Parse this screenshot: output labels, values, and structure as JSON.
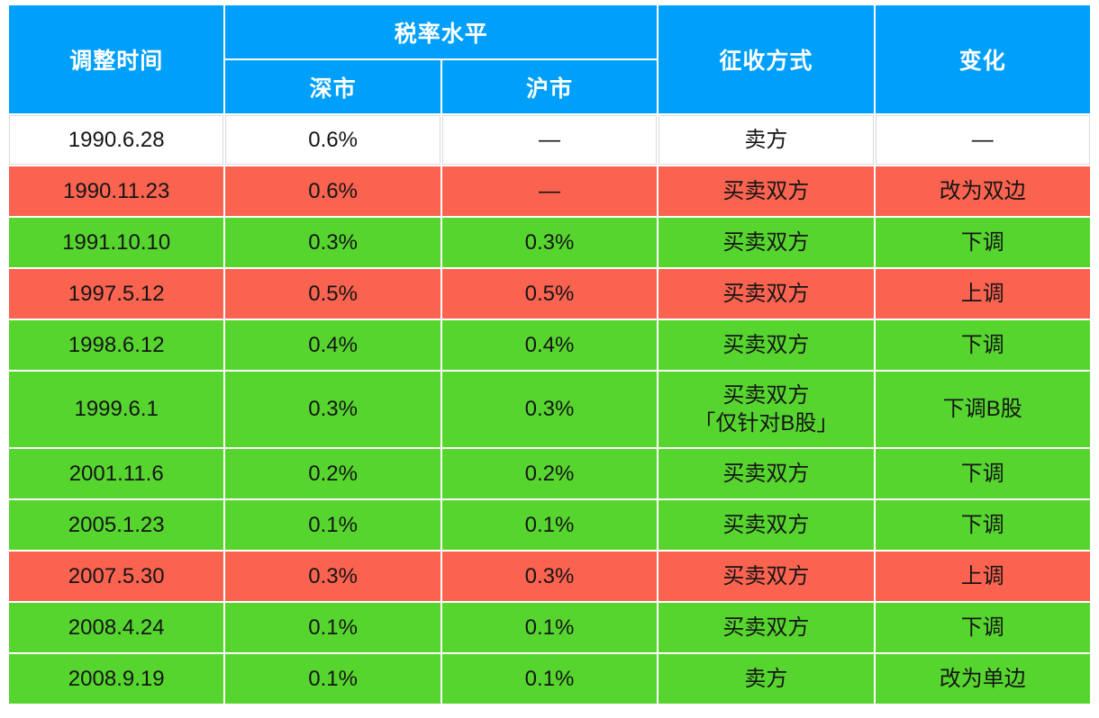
{
  "chart_data": {
    "type": "table",
    "headers": {
      "time": "调整时间",
      "tax_level_group": "税率水平",
      "shenzhen": "深市",
      "shanghai": "沪市",
      "method": "征收方式",
      "change": "变化"
    },
    "rows": [
      {
        "date": "1990.6.28",
        "shenzhen": "0.6%",
        "shanghai": "—",
        "method": "卖方",
        "method_note": "",
        "change": "—",
        "color": "white"
      },
      {
        "date": "1990.11.23",
        "shenzhen": "0.6%",
        "shanghai": "—",
        "method": "买卖双方",
        "method_note": "",
        "change": "改为双边",
        "color": "red"
      },
      {
        "date": "1991.10.10",
        "shenzhen": "0.3%",
        "shanghai": "0.3%",
        "method": "买卖双方",
        "method_note": "",
        "change": "下调",
        "color": "green"
      },
      {
        "date": "1997.5.12",
        "shenzhen": "0.5%",
        "shanghai": "0.5%",
        "method": "买卖双方",
        "method_note": "",
        "change": "上调",
        "color": "red"
      },
      {
        "date": "1998.6.12",
        "shenzhen": "0.4%",
        "shanghai": "0.4%",
        "method": "买卖双方",
        "method_note": "",
        "change": "下调",
        "color": "green"
      },
      {
        "date": "1999.6.1",
        "shenzhen": "0.3%",
        "shanghai": "0.3%",
        "method": "买卖双方",
        "method_note": "「仅针对B股」",
        "change": "下调B股",
        "color": "green"
      },
      {
        "date": "2001.11.6",
        "shenzhen": "0.2%",
        "shanghai": "0.2%",
        "method": "买卖双方",
        "method_note": "",
        "change": "下调",
        "color": "green"
      },
      {
        "date": "2005.1.23",
        "shenzhen": "0.1%",
        "shanghai": "0.1%",
        "method": "买卖双方",
        "method_note": "",
        "change": "下调",
        "color": "green"
      },
      {
        "date": "2007.5.30",
        "shenzhen": "0.3%",
        "shanghai": "0.3%",
        "method": "买卖双方",
        "method_note": "",
        "change": "上调",
        "color": "red"
      },
      {
        "date": "2008.4.24",
        "shenzhen": "0.1%",
        "shanghai": "0.1%",
        "method": "买卖双方",
        "method_note": "",
        "change": "下调",
        "color": "green"
      },
      {
        "date": "2008.9.19",
        "shenzhen": "0.1%",
        "shanghai": "0.1%",
        "method": "卖方",
        "method_note": "",
        "change": "改为单边",
        "color": "green"
      }
    ],
    "colors": {
      "header_bg": "#00A0FA",
      "header_text": "#FFFFFF",
      "row_red": "#FA6350",
      "row_green": "#57D52F",
      "row_white": "#FFFFFF",
      "body_text": "#151515",
      "grid": "#FFFFFF",
      "white_row_outline": "#D9D9D9"
    },
    "layout": {
      "column_count": 5,
      "header_levels": 2,
      "grid": "on"
    }
  }
}
